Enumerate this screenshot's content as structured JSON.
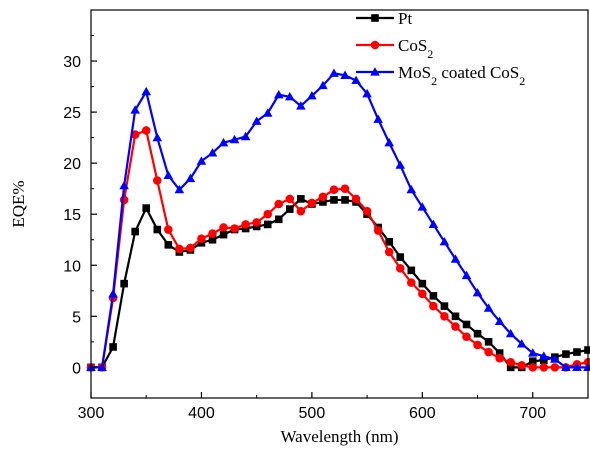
{
  "chart_data": {
    "type": "line",
    "xlabel": "Wavelength (nm)",
    "ylabel": "EQE%",
    "xlim": [
      300,
      750
    ],
    "ylim": [
      -3,
      35
    ],
    "xticks": [
      300,
      400,
      500,
      600,
      700
    ],
    "yticks": [
      0,
      5,
      10,
      15,
      20,
      25,
      30
    ],
    "grid": false,
    "legend_position": "top-right",
    "legend": [
      {
        "main": "Pt",
        "sub": "",
        "tail": "",
        "sub2": ""
      },
      {
        "main": "CoS",
        "sub": "2",
        "tail": "",
        "sub2": ""
      },
      {
        "main": "MoS",
        "sub": "2",
        "tail": " coated CoS",
        "sub2": "2"
      }
    ],
    "series": [
      {
        "name": "Pt",
        "color": "#000000",
        "marker": "square",
        "x": [
          300,
          310,
          320,
          330,
          340,
          350,
          360,
          370,
          380,
          390,
          400,
          410,
          420,
          430,
          440,
          450,
          460,
          470,
          480,
          490,
          500,
          510,
          520,
          530,
          540,
          550,
          560,
          570,
          580,
          590,
          600,
          610,
          620,
          630,
          640,
          650,
          660,
          670,
          680,
          690,
          700,
          710,
          720,
          730,
          740,
          750
        ],
        "y": [
          0,
          0,
          2,
          8.2,
          13.3,
          15.6,
          13.5,
          12,
          11.3,
          11.5,
          12.2,
          12.5,
          13,
          13.5,
          13.6,
          13.8,
          14,
          14.5,
          15.5,
          16.5,
          16,
          16.2,
          16.4,
          16.4,
          16.2,
          15,
          13.7,
          12.3,
          10.8,
          9.5,
          8.2,
          7,
          6,
          5,
          4.2,
          3.3,
          2.5,
          1.4,
          0,
          0,
          0.6,
          0.7,
          1,
          1.3,
          1.5,
          1.7
        ]
      },
      {
        "name": "CoS2",
        "color": "#ff0000",
        "marker": "circle",
        "x": [
          300,
          310,
          320,
          330,
          340,
          350,
          360,
          370,
          380,
          390,
          400,
          410,
          420,
          430,
          440,
          450,
          460,
          470,
          480,
          490,
          500,
          510,
          520,
          530,
          540,
          550,
          560,
          570,
          580,
          590,
          600,
          610,
          620,
          630,
          640,
          650,
          660,
          670,
          680,
          690,
          700,
          710,
          720,
          730,
          740,
          750
        ],
        "y": [
          0,
          0,
          6.8,
          16.4,
          22.8,
          23.2,
          18.3,
          13.5,
          11.6,
          11.7,
          12.6,
          13.1,
          13.7,
          13.6,
          14,
          14.2,
          15,
          16,
          16.5,
          15.3,
          16.1,
          16.7,
          17.4,
          17.5,
          16.5,
          15.3,
          13.4,
          11.3,
          9.7,
          8.3,
          7.2,
          6,
          5,
          4,
          3,
          2.2,
          1.5,
          0.9,
          0.5,
          0.2,
          0,
          0,
          0,
          0,
          0.3,
          0.5
        ]
      },
      {
        "name": "MoS2 coated CoS2",
        "color": "#0000ff",
        "marker": "triangle",
        "x": [
          300,
          310,
          320,
          330,
          340,
          350,
          360,
          370,
          380,
          390,
          400,
          410,
          420,
          430,
          440,
          450,
          460,
          470,
          480,
          490,
          500,
          510,
          520,
          530,
          540,
          550,
          560,
          570,
          580,
          590,
          600,
          610,
          620,
          630,
          640,
          650,
          660,
          670,
          680,
          690,
          700,
          710,
          720,
          730,
          740,
          750
        ],
        "y": [
          0,
          0,
          7.2,
          17.8,
          25.2,
          27,
          22.5,
          18.8,
          17.4,
          18.5,
          20.2,
          21,
          22,
          22.3,
          22.6,
          24.1,
          24.9,
          26.7,
          26.5,
          25.6,
          26.6,
          27.6,
          28.8,
          28.6,
          28.1,
          26.8,
          24.3,
          22,
          19.8,
          17.4,
          15.7,
          14,
          12.3,
          10.6,
          9,
          7.3,
          5.8,
          4.5,
          3.3,
          2.3,
          1.4,
          1.1,
          0.8,
          0,
          0,
          0
        ]
      }
    ]
  }
}
